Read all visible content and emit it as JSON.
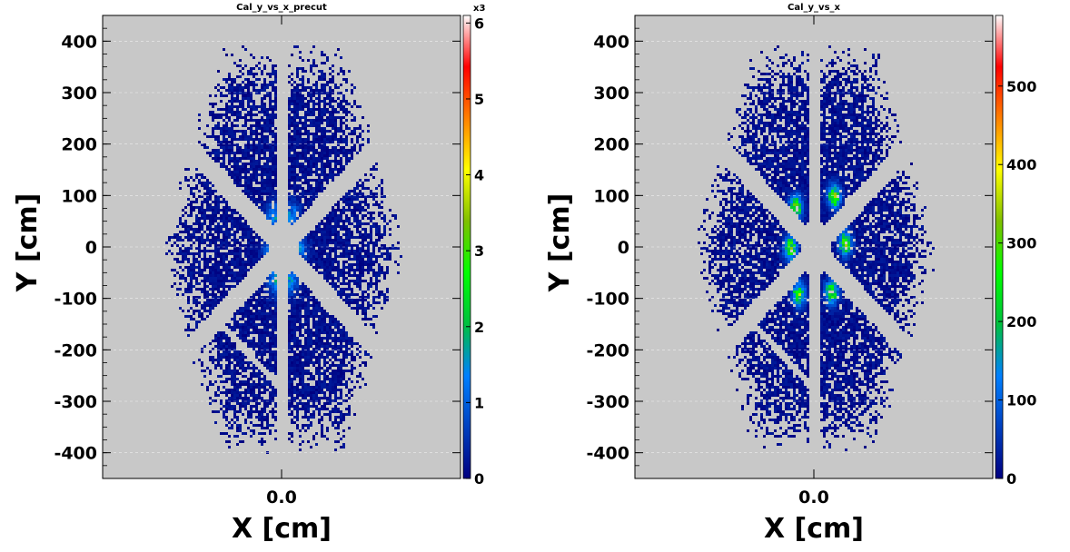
{
  "chart_data": [
    {
      "type": "heatmap",
      "title": "Cal_y_vs_x_precut",
      "xlabel": "X [cm]",
      "ylabel": "Y [cm]",
      "x_ticks": [
        "0.0"
      ],
      "x_tick_values": [
        0
      ],
      "xlim": [
        -450,
        450
      ],
      "y_ticks": [
        "400",
        "300",
        "200",
        "100",
        "0",
        "-100",
        "-200",
        "-300",
        "-400"
      ],
      "y_tick_values": [
        400,
        300,
        200,
        100,
        0,
        -100,
        -200,
        -300,
        -400
      ],
      "ylim": [
        -450,
        450
      ],
      "z_ticks": [
        "0",
        "1",
        "2",
        "3",
        "4",
        "5",
        "6"
      ],
      "z_tick_values": [
        0,
        1,
        2,
        3,
        4,
        5,
        6
      ],
      "z_multiplier": "x3",
      "zlim": [
        0,
        6.1
      ],
      "grid": "horizontal-dashed",
      "background_color": "#c8c8c8",
      "colormap": [
        "#000080",
        "#0040c0",
        "#0080ff",
        "#00c040",
        "#00ff00",
        "#80c000",
        "#ffff00",
        "#ff8000",
        "#ff0000",
        "#ffffff"
      ]
    },
    {
      "type": "heatmap",
      "title": "Cal_y_vs_x",
      "xlabel": "X [cm]",
      "ylabel": "Y [cm]",
      "x_ticks": [
        "0.0"
      ],
      "x_tick_values": [
        0
      ],
      "xlim": [
        -450,
        450
      ],
      "y_ticks": [
        "400",
        "300",
        "200",
        "100",
        "0",
        "-100",
        "-200",
        "-300",
        "-400"
      ],
      "y_tick_values": [
        400,
        300,
        200,
        100,
        0,
        -100,
        -200,
        -300,
        -400
      ],
      "ylim": [
        -450,
        450
      ],
      "z_ticks": [
        "0",
        "100",
        "200",
        "300",
        "400",
        "500"
      ],
      "z_tick_values": [
        0,
        100,
        200,
        300,
        400,
        500
      ],
      "z_multiplier": "",
      "zlim": [
        0,
        590
      ],
      "grid": "horizontal-dashed",
      "background_color": "#c8c8c8",
      "colormap": [
        "#000080",
        "#0040c0",
        "#0080ff",
        "#00c040",
        "#00ff00",
        "#80c000",
        "#ffff00",
        "#ff8000",
        "#ff0000",
        "#ffffff"
      ]
    }
  ]
}
